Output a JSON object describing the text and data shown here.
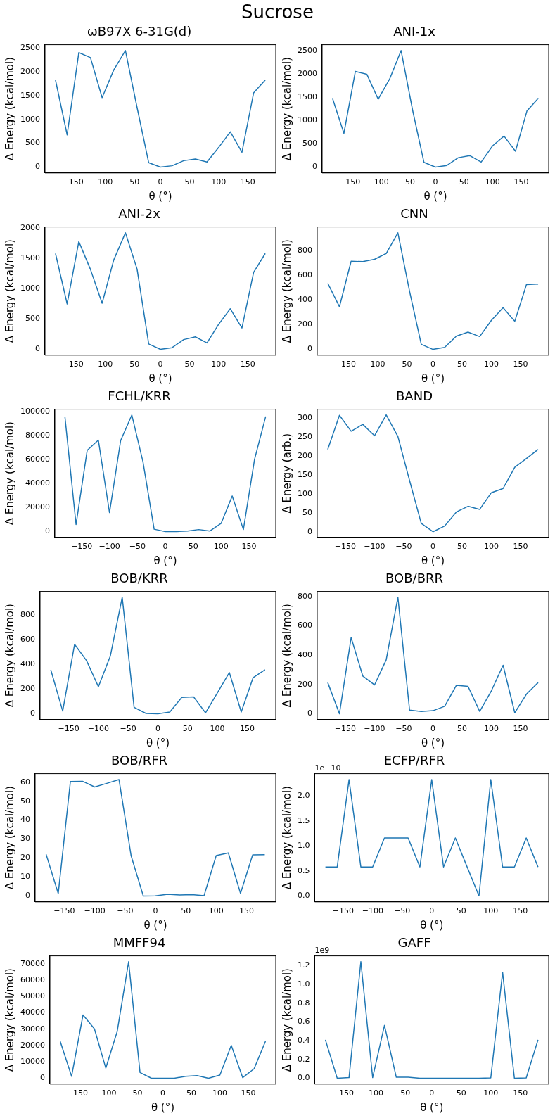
{
  "chart_data": [
    {
      "type": "line",
      "title": "ωB97X 6-31G(d)",
      "xlabel": "θ (°)",
      "ylabel": "Δ Energy (kcal/mol)",
      "annotations": [
        "Sucrose"
      ],
      "color": "#1f77b4",
      "x": [
        -180,
        -160,
        -140,
        -120,
        -100,
        -80,
        -60,
        -40,
        -20,
        0,
        20,
        40,
        60,
        80,
        100,
        120,
        140,
        160,
        180
      ],
      "values": [
        1825,
        675,
        2400,
        2295,
        1456,
        2038,
        2443,
        1250,
        92,
        0,
        28,
        135,
        170,
        107,
        412,
        739,
        312,
        1555,
        1825
      ],
      "xlim": [
        -198,
        198
      ],
      "xticks": [
        {
          "value": -150,
          "label": "−150"
        },
        {
          "value": -100,
          "label": "−100"
        },
        {
          "value": -50,
          "label": "−50"
        },
        0,
        50,
        100,
        150
      ],
      "ylim": [
        -122,
        2565
      ],
      "yticks": [
        0,
        500,
        1000,
        1500,
        2000,
        2500
      ]
    },
    {
      "type": "line",
      "title": "ANI-1x",
      "xlabel": "θ (°)",
      "ylabel": "Δ Energy (kcal/mol)",
      "color": "#1f77b4",
      "x": [
        -180,
        -160,
        -140,
        -120,
        -100,
        -80,
        -60,
        -40,
        -20,
        0,
        20,
        40,
        60,
        80,
        100,
        120,
        140,
        160,
        180
      ],
      "values": [
        1483,
        727,
        2057,
        1999,
        1461,
        1897,
        2507,
        1230,
        102,
        0,
        36,
        203,
        247,
        109,
        458,
        669,
        342,
        1206,
        1483
      ],
      "xlim": [
        -198,
        198
      ],
      "xticks": [
        {
          "value": -150,
          "label": "−150"
        },
        {
          "value": -100,
          "label": "−100"
        },
        {
          "value": -50,
          "label": "−50"
        },
        0,
        50,
        100,
        150
      ],
      "ylim": [
        -125,
        2632
      ],
      "yticks": [
        0,
        500,
        1000,
        1500,
        2000,
        2500
      ]
    },
    {
      "type": "line",
      "title": "ANI-2x",
      "xlabel": "θ (°)",
      "ylabel": "Δ Energy (kcal/mol)",
      "color": "#1f77b4",
      "x": [
        -180,
        -160,
        -140,
        -120,
        -100,
        -80,
        -60,
        -40,
        -20,
        0,
        20,
        40,
        60,
        80,
        100,
        120,
        140,
        160,
        180
      ],
      "values": [
        1585,
        751,
        1782,
        1322,
        762,
        1479,
        1927,
        1328,
        90,
        0,
        28,
        162,
        207,
        106,
        415,
        672,
        353,
        1272,
        1585
      ],
      "xlim": [
        -198,
        198
      ],
      "xticks": [
        {
          "value": -150,
          "label": "−150"
        },
        {
          "value": -100,
          "label": "−100"
        },
        {
          "value": -50,
          "label": "−50"
        },
        0,
        50,
        100,
        150
      ],
      "ylim": [
        -96,
        2023
      ],
      "yticks": [
        0,
        500,
        1000,
        1500,
        2000
      ]
    },
    {
      "type": "line",
      "title": "CNN",
      "xlabel": "θ (°)",
      "ylabel": "Δ Energy (kcal/mol)",
      "color": "#1f77b4",
      "x": [
        -180,
        -160,
        -140,
        -120,
        -100,
        -80,
        -60,
        -40,
        -20,
        0,
        20,
        40,
        60,
        80,
        100,
        120,
        140,
        160,
        180
      ],
      "values": [
        536,
        346,
        715,
        712,
        731,
        778,
        946,
        470,
        41,
        0,
        16,
        107,
        140,
        104,
        236,
        338,
        228,
        525,
        530
      ],
      "xlim": [
        -198,
        198
      ],
      "xticks": [
        {
          "value": -150,
          "label": "−150"
        },
        {
          "value": -100,
          "label": "−100"
        },
        {
          "value": -50,
          "label": "−50"
        },
        0,
        50,
        100,
        150
      ],
      "ylim": [
        -47,
        993
      ],
      "yticks": [
        0,
        200,
        400,
        600,
        800
      ]
    },
    {
      "type": "line",
      "title": "FCHL/KRR",
      "xlabel": "θ (°)",
      "ylabel": "Δ Energy (kcal/mol)",
      "color": "#1f77b4",
      "x": [
        -180,
        -160,
        -140,
        -120,
        -100,
        -80,
        -60,
        -40,
        -20,
        0,
        20,
        40,
        60,
        80,
        100,
        120,
        140,
        160,
        180
      ],
      "values": [
        96000,
        5900,
        67800,
        76300,
        15800,
        76000,
        97200,
        58200,
        2000,
        0,
        0,
        500,
        1700,
        500,
        6800,
        29700,
        1700,
        60200,
        96000
      ],
      "xlim": [
        -198,
        198
      ],
      "xticks": [
        {
          "value": -150,
          "label": "−150"
        },
        {
          "value": -100,
          "label": "−100"
        },
        {
          "value": -50,
          "label": "−50"
        },
        0,
        50,
        100,
        150
      ],
      "ylim": [
        -4860,
        102060
      ],
      "yticks": [
        0,
        20000,
        40000,
        60000,
        80000,
        100000
      ]
    },
    {
      "type": "line",
      "title": "BAND",
      "xlabel": "θ (°)",
      "ylabel": "Δ Energy (arb.)",
      "color": "#1f77b4",
      "x": [
        -180,
        -160,
        -140,
        -120,
        -100,
        -80,
        -60,
        -40,
        -20,
        0,
        20,
        40,
        60,
        80,
        100,
        120,
        140,
        160,
        180
      ],
      "values": [
        217,
        307,
        265,
        283,
        253,
        308,
        251,
        135,
        22,
        0,
        15,
        52,
        67,
        59,
        103,
        114,
        170,
        193,
        217
      ],
      "xlim": [
        -198,
        198
      ],
      "xticks": [
        {
          "value": -150,
          "label": "−150"
        },
        {
          "value": -100,
          "label": "−100"
        },
        {
          "value": -50,
          "label": "−50"
        },
        0,
        50,
        100,
        150
      ],
      "ylim": [
        -15,
        323
      ],
      "yticks": [
        0,
        50,
        100,
        150,
        200,
        250,
        300
      ]
    },
    {
      "type": "line",
      "title": "BOB/KRR",
      "xlabel": "θ (°)",
      "ylabel": "Δ Energy (kcal/mol)",
      "color": "#1f77b4",
      "x": [
        -180,
        -160,
        -140,
        -120,
        -100,
        -80,
        -60,
        -40,
        -20,
        0,
        20,
        40,
        60,
        80,
        100,
        120,
        140,
        160,
        180
      ],
      "values": [
        356,
        22,
        562,
        430,
        219,
        466,
        942,
        52,
        3,
        0,
        14,
        132,
        137,
        8,
        170,
        334,
        14,
        293,
        356
      ],
      "xlim": [
        -198,
        198
      ],
      "xticks": [
        {
          "value": -150,
          "label": "−150"
        },
        {
          "value": -100,
          "label": "−100"
        },
        {
          "value": -50,
          "label": "−50"
        },
        0,
        50,
        100,
        150
      ],
      "ylim": [
        -47,
        989
      ],
      "yticks": [
        0,
        200,
        400,
        600,
        800
      ]
    },
    {
      "type": "line",
      "title": "BOB/BRR",
      "xlabel": "θ (°)",
      "ylabel": "Δ Energy (kcal/mol)",
      "color": "#1f77b4",
      "x": [
        -180,
        -160,
        -140,
        -120,
        -100,
        -80,
        -60,
        -40,
        -20,
        0,
        20,
        40,
        60,
        80,
        100,
        120,
        140,
        160,
        180
      ],
      "values": [
        213,
        0,
        520,
        257,
        197,
        368,
        795,
        25,
        16,
        21,
        51,
        194,
        187,
        16,
        157,
        331,
        7,
        134,
        213
      ],
      "xlim": [
        -198,
        198
      ],
      "xticks": [
        {
          "value": -150,
          "label": "−150"
        },
        {
          "value": -100,
          "label": "−100"
        },
        {
          "value": -50,
          "label": "−50"
        },
        0,
        50,
        100,
        150
      ],
      "ylim": [
        -40,
        835
      ],
      "yticks": [
        0,
        200,
        400,
        600,
        800
      ]
    },
    {
      "type": "line",
      "title": "BOB/RFR",
      "xlabel": "θ (°)",
      "ylabel": "Δ Energy (kcal/mol)",
      "color": "#1f77b4",
      "x": [
        -180,
        -160,
        -140,
        -120,
        -100,
        -80,
        -60,
        -40,
        -20,
        0,
        20,
        40,
        60,
        80,
        100,
        120,
        140,
        160,
        180
      ],
      "values": [
        22.0,
        1.3,
        60.4,
        60.5,
        57.5,
        59.4,
        61.4,
        21.1,
        0,
        0.1,
        0.9,
        0.5,
        0.7,
        0.2,
        21.3,
        22.7,
        1.4,
        21.7,
        21.8
      ],
      "xlim": [
        -198,
        198
      ],
      "xticks": [
        {
          "value": -150,
          "label": "−150"
        },
        {
          "value": -100,
          "label": "−100"
        },
        {
          "value": -50,
          "label": "−50"
        },
        0,
        50,
        100,
        150
      ],
      "ylim": [
        -3.1,
        64.5
      ],
      "yticks": [
        0,
        10,
        20,
        30,
        40,
        50,
        60
      ]
    },
    {
      "type": "line",
      "title": "ECFP/RFR",
      "xlabel": "θ (°)",
      "ylabel": "Δ Energy (kcal/mol)",
      "annotations": [
        "1e−10"
      ],
      "color": "#1f77b4",
      "x": [
        -180,
        -160,
        -140,
        -120,
        -100,
        -80,
        -60,
        -40,
        -20,
        0,
        20,
        40,
        60,
        80,
        100,
        120,
        140,
        160,
        180
      ],
      "values": [
        0.58,
        0.58,
        2.33,
        0.58,
        0.58,
        1.16,
        1.16,
        1.16,
        0.58,
        2.33,
        0.58,
        1.16,
        0.58,
        0,
        2.33,
        0.58,
        0.58,
        1.16,
        0.58
      ],
      "xlim": [
        -198,
        198
      ],
      "xticks": [
        {
          "value": -150,
          "label": "−150"
        },
        {
          "value": -100,
          "label": "−100"
        },
        {
          "value": -50,
          "label": "−50"
        },
        0,
        50,
        100,
        150
      ],
      "ylim": [
        -0.12,
        2.45
      ],
      "yticks": [
        {
          "value": 0,
          "label": "0.0"
        },
        0.5,
        {
          "value": 1,
          "label": "1.0"
        },
        1.5,
        {
          "value": 2,
          "label": "2.0"
        }
      ]
    },
    {
      "type": "line",
      "title": "MMFF94",
      "xlabel": "θ (°)",
      "ylabel": "Δ Energy (kcal/mol)",
      "color": "#1f77b4",
      "x": [
        -180,
        -160,
        -140,
        -120,
        -100,
        -80,
        -60,
        -40,
        -20,
        0,
        20,
        40,
        60,
        80,
        100,
        120,
        140,
        160,
        180
      ],
      "values": [
        22600,
        1200,
        38700,
        30200,
        6200,
        28600,
        71200,
        3500,
        0,
        0,
        0,
        1200,
        1600,
        0,
        1900,
        20100,
        400,
        5800,
        22600
      ],
      "xlim": [
        -198,
        198
      ],
      "xticks": [
        {
          "value": -150,
          "label": "−150"
        },
        {
          "value": -100,
          "label": "−100"
        },
        {
          "value": -50,
          "label": "−50"
        },
        0,
        50,
        100,
        150
      ],
      "ylim": [
        -3560,
        74760
      ],
      "yticks": [
        0,
        10000,
        20000,
        30000,
        40000,
        50000,
        60000,
        70000
      ]
    },
    {
      "type": "line",
      "title": "GAFF",
      "xlabel": "θ (°)",
      "ylabel": "Δ Energy (kcal/mol)",
      "annotations": [
        "1e9"
      ],
      "color": "#1f77b4",
      "x": [
        -180,
        -160,
        -140,
        -120,
        -100,
        -80,
        -60,
        -40,
        -20,
        0,
        20,
        40,
        60,
        80,
        100,
        120,
        140,
        160,
        180
      ],
      "values": [
        0.41,
        0,
        0.007,
        1.243,
        0.007,
        0.564,
        0.011,
        0.011,
        0,
        0,
        0,
        0,
        0,
        0,
        0.004,
        1.131,
        0,
        0.004,
        0.41
      ],
      "xlim": [
        -198,
        198
      ],
      "xticks": [
        {
          "value": -150,
          "label": "−150"
        },
        {
          "value": -100,
          "label": "−100"
        },
        {
          "value": -50,
          "label": "−50"
        },
        0,
        50,
        100,
        150
      ],
      "ylim": [
        -0.062,
        1.305
      ],
      "yticks": [
        {
          "value": 0,
          "label": "0.0"
        },
        0.2,
        0.4,
        0.6,
        0.8,
        {
          "value": 1,
          "label": "1.0"
        },
        1.2
      ]
    }
  ]
}
